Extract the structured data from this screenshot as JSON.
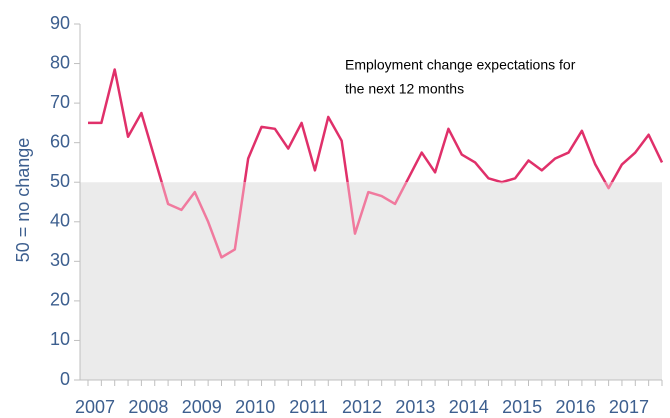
{
  "chart_data": {
    "type": "line",
    "y_label": "50 = no change",
    "annotation": [
      "Employment change expectations for",
      "the next 12 months"
    ],
    "categories": [
      "2007",
      null,
      null,
      null,
      "2008",
      null,
      null,
      null,
      "2009",
      null,
      null,
      null,
      "2010",
      null,
      null,
      null,
      "2011",
      null,
      null,
      null,
      "2012",
      null,
      null,
      null,
      "2013",
      null,
      null,
      null,
      "2014",
      null,
      null,
      null,
      "2015",
      null,
      null,
      null,
      "2016",
      null,
      null,
      null,
      "2017",
      null,
      null,
      null
    ],
    "series": [
      {
        "color": "#e0306a",
        "below_color": "#f07a9e",
        "values": [
          65,
          65,
          78.5,
          61.5,
          67.5,
          56,
          44.5,
          43,
          47.5,
          40,
          31,
          33,
          56,
          64,
          63.5,
          58.5,
          65,
          53,
          66.5,
          60.5,
          37,
          47.5,
          46.5,
          44.5,
          51,
          57.5,
          52.5,
          63.5,
          57,
          55,
          51,
          50,
          51,
          55.5,
          53,
          56,
          57.5,
          63,
          54.5,
          48.5,
          54.5,
          57.5,
          62,
          55
        ]
      }
    ],
    "threshold": 50,
    "threshold_fill": "#ebebeb",
    "ylim": [
      0,
      90
    ],
    "yticks": [
      0,
      10,
      20,
      30,
      40,
      50,
      60,
      70,
      80,
      90
    ]
  }
}
